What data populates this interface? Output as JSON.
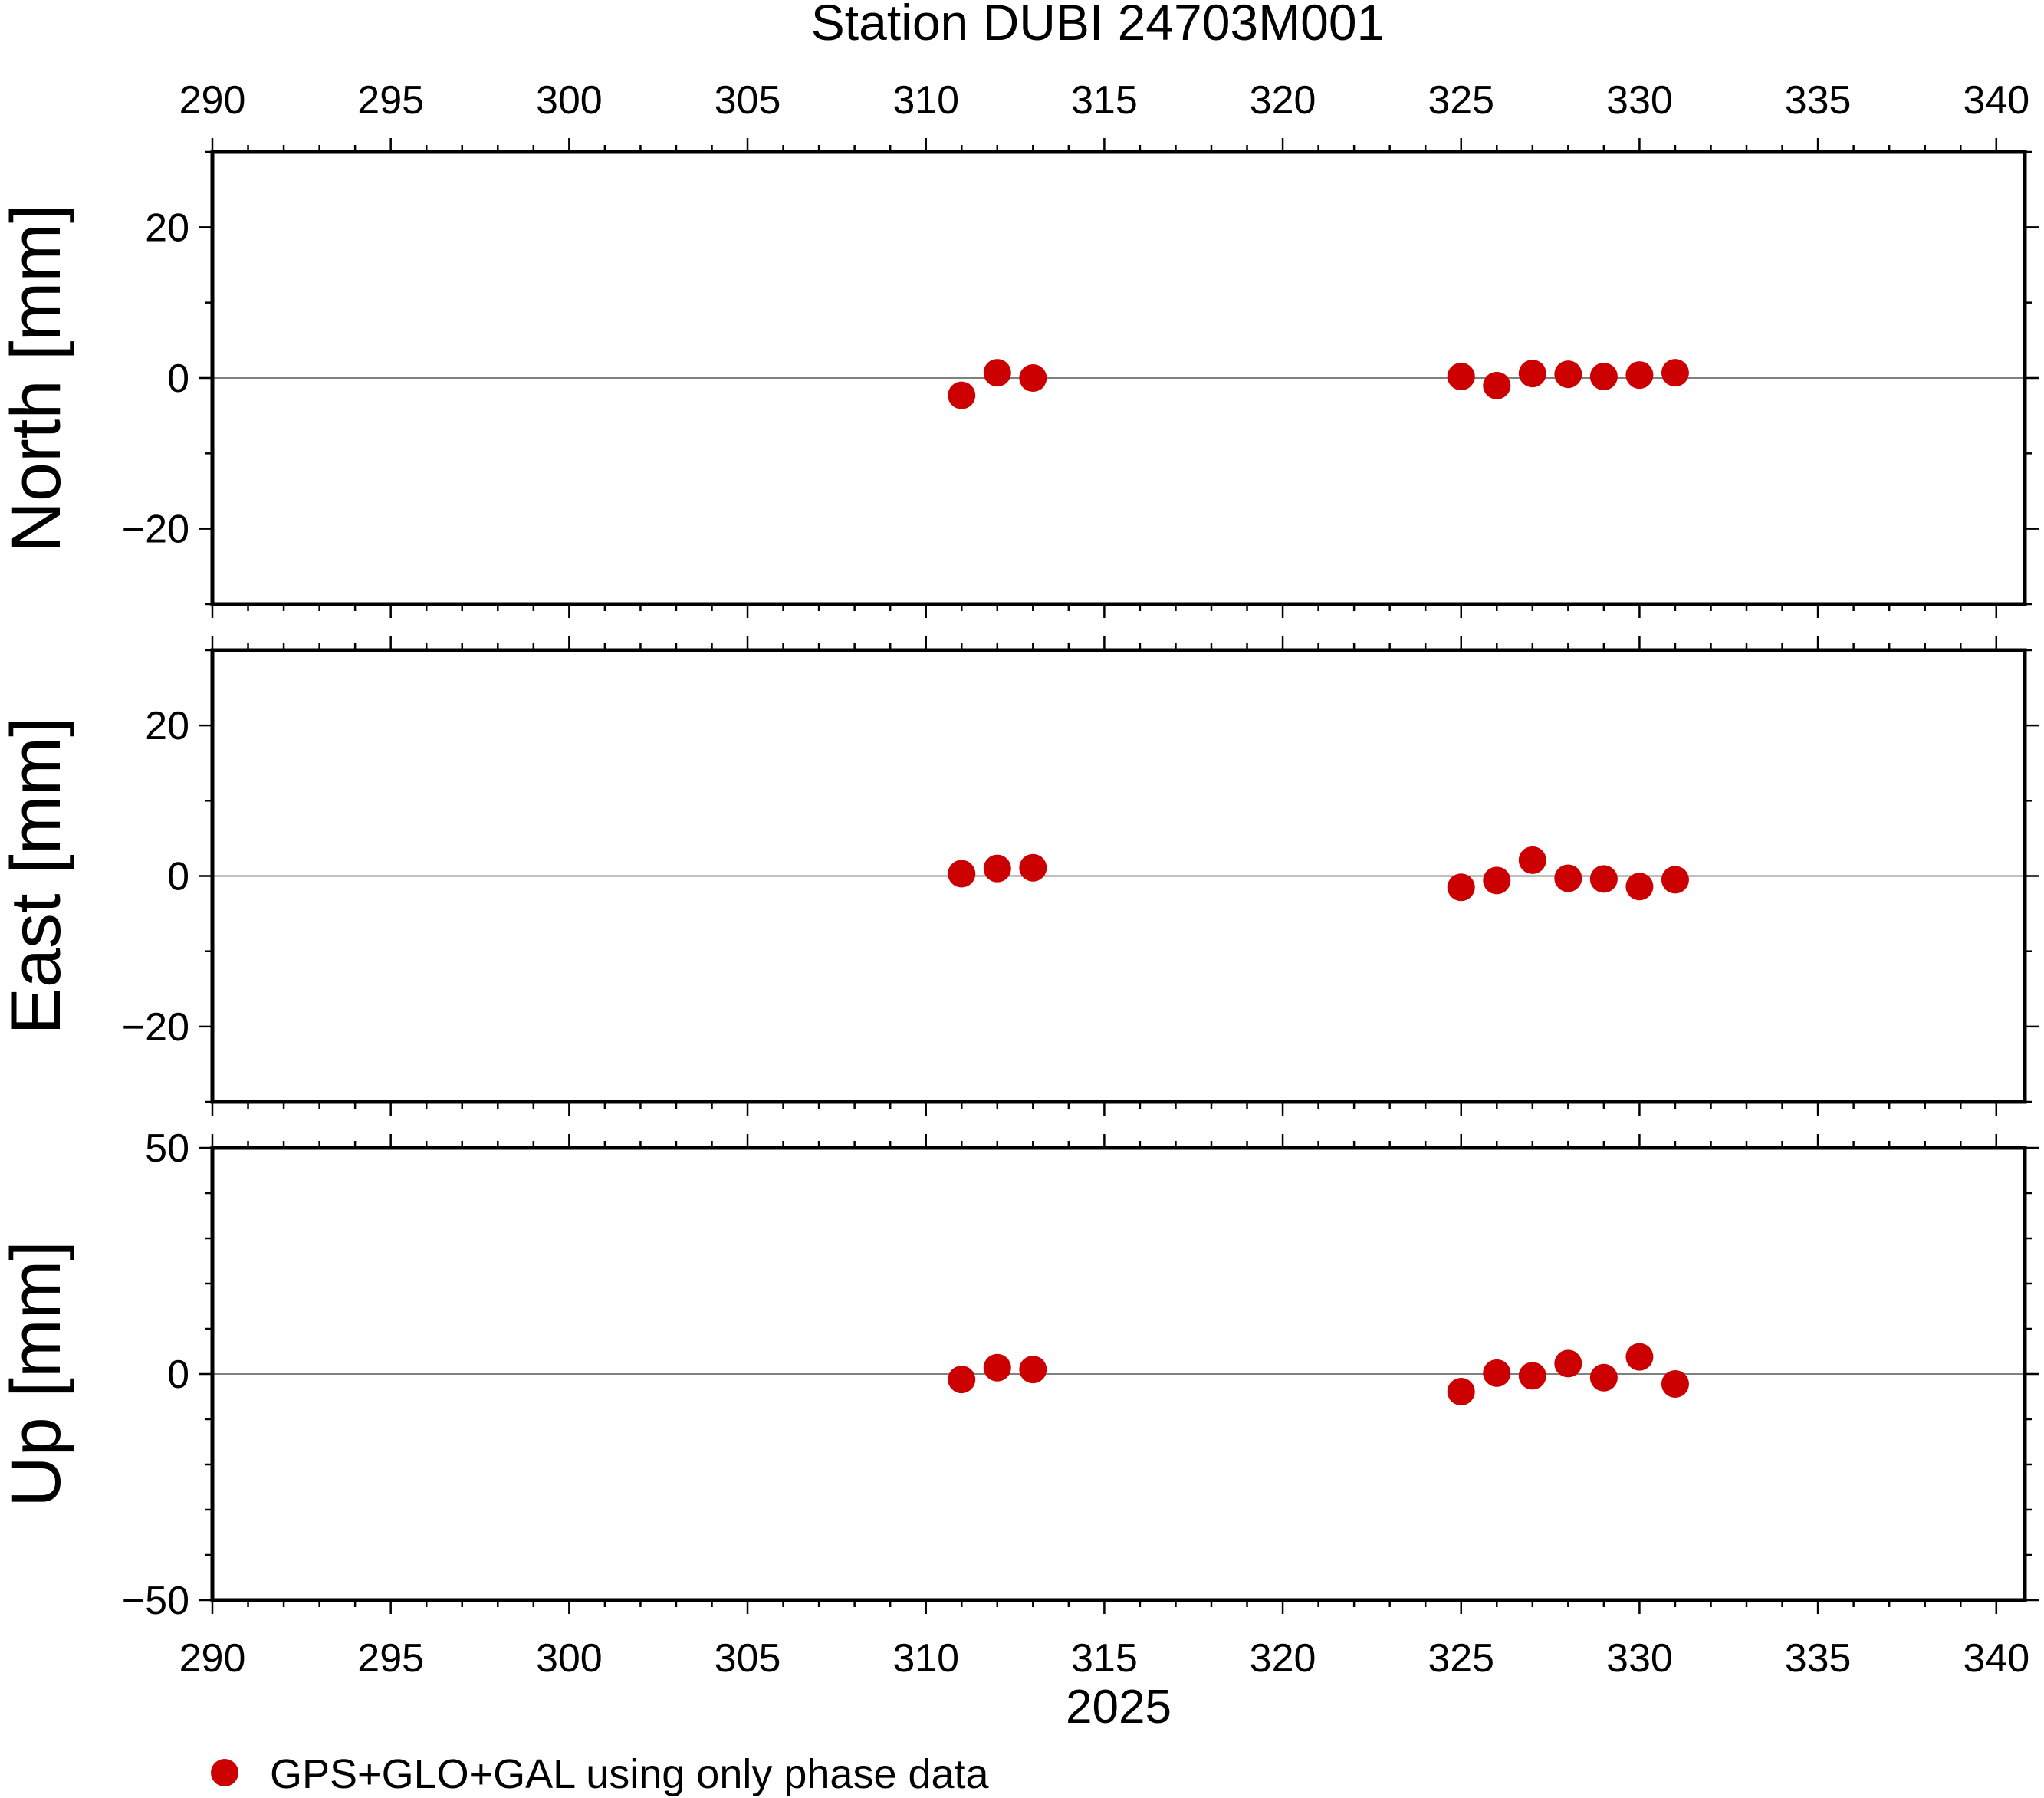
{
  "chart_data": {
    "type": "scatter",
    "title": "Station DUBI 24703M001",
    "xlabel": "2025",
    "xlim": [
      290,
      340.8
    ],
    "x_ticks": [
      "290",
      "295",
      "300",
      "305",
      "310",
      "315",
      "320",
      "325",
      "330",
      "335",
      "340"
    ],
    "x": [
      311,
      312,
      313,
      325,
      326,
      327,
      328,
      329,
      330,
      331
    ],
    "marker_color": "#cc0000",
    "grid": false,
    "legend": {
      "position": "bottom-left",
      "label": "GPS+GLO+GAL using only phase data"
    },
    "panels": [
      {
        "ylabel": "North [mm]",
        "ylim": [
          -30,
          30
        ],
        "y_ticks": [
          "20",
          "0",
          "−20"
        ],
        "values": [
          -2.3,
          0.7,
          0.0,
          0.2,
          -1.0,
          0.6,
          0.5,
          0.2,
          0.4,
          0.7
        ]
      },
      {
        "ylabel": "East [mm]",
        "ylim": [
          -30,
          30
        ],
        "y_ticks": [
          "20",
          "0",
          "−20"
        ],
        "values": [
          0.3,
          1.0,
          1.1,
          -1.5,
          -0.6,
          2.1,
          -0.3,
          -0.4,
          -1.4,
          -0.5
        ]
      },
      {
        "ylabel": "Up [mm]",
        "ylim": [
          -50,
          50
        ],
        "y_ticks": [
          "50",
          "0",
          "−50"
        ],
        "values": [
          -1.2,
          1.4,
          1.0,
          -3.9,
          0.2,
          -0.4,
          2.3,
          -0.8,
          3.8,
          -2.2
        ]
      }
    ]
  }
}
